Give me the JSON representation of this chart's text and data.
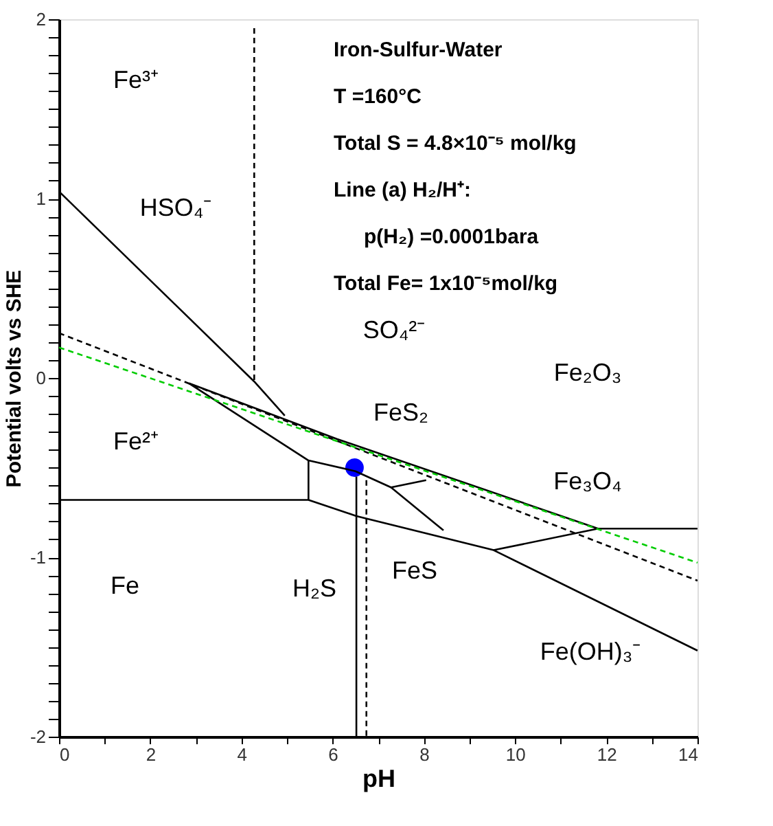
{
  "chart_data": {
    "type": "line",
    "xlabel": "pH",
    "ylabel": "Potential volts vs SHE",
    "xlim": [
      0,
      14
    ],
    "ylim": [
      -2,
      2
    ],
    "xticks": [
      0,
      {
        "value": 1,
        "label": null
      },
      2,
      {
        "value": 3,
        "label": null
      },
      4,
      {
        "value": 5,
        "label": null
      },
      6,
      {
        "value": 7,
        "label": null
      },
      8,
      {
        "value": 9,
        "label": null
      },
      10,
      {
        "value": 11,
        "label": null
      },
      12,
      {
        "value": 13,
        "label": null
      },
      14
    ],
    "yticks": [
      -2,
      {
        "value": -1.9,
        "label": null
      },
      {
        "value": -1.8,
        "label": null
      },
      {
        "value": -1.7,
        "label": null
      },
      {
        "value": -1.6,
        "label": null
      },
      {
        "value": -1.5,
        "label": null
      },
      {
        "value": -1.4,
        "label": null
      },
      {
        "value": -1.3,
        "label": null
      },
      {
        "value": -1.2,
        "label": null
      },
      {
        "value": -1.1,
        "label": null
      },
      -1,
      {
        "value": -0.9,
        "label": null
      },
      {
        "value": -0.8,
        "label": null
      },
      {
        "value": -0.7,
        "label": null
      },
      {
        "value": -0.6,
        "label": null
      },
      {
        "value": -0.5,
        "label": null
      },
      {
        "value": -0.4,
        "label": null
      },
      {
        "value": -0.3,
        "label": null
      },
      {
        "value": -0.2,
        "label": null
      },
      {
        "value": -0.1,
        "label": null
      },
      0,
      {
        "value": 0.1,
        "label": null
      },
      {
        "value": 0.2,
        "label": null
      },
      {
        "value": 0.3,
        "label": null
      },
      {
        "value": 0.4,
        "label": null
      },
      {
        "value": 0.5,
        "label": null
      },
      {
        "value": 0.6,
        "label": null
      },
      {
        "value": 0.7,
        "label": null
      },
      {
        "value": 0.8,
        "label": null
      },
      {
        "value": 0.9,
        "label": null
      },
      1,
      {
        "value": 1.1,
        "label": null
      },
      {
        "value": 1.2,
        "label": null
      },
      {
        "value": 1.3,
        "label": null
      },
      {
        "value": 1.4,
        "label": null
      },
      {
        "value": 1.5,
        "label": null
      },
      {
        "value": 1.6,
        "label": null
      },
      {
        "value": 1.7,
        "label": null
      },
      {
        "value": 1.8,
        "label": null
      },
      {
        "value": 1.9,
        "label": null
      },
      2
    ],
    "grid": false,
    "marker": "none",
    "series": [
      {
        "color": "#000000",
        "line_style": "solid",
        "x": [
          0,
          4.28,
          4.95
        ],
        "values": [
          1.04,
          -0.02,
          -0.21
        ]
      },
      {
        "color": "#000000",
        "line_style": "solid",
        "x": [
          2.85,
          6.09,
          11.82,
          14
        ],
        "values": [
          -0.03,
          -0.34,
          -0.84,
          -0.84
        ]
      },
      {
        "color": "#000000",
        "line_style": "solid",
        "x": [
          2.85,
          5.47,
          6.5,
          7.28,
          8.05
        ],
        "values": [
          -0.03,
          -0.46,
          -0.52,
          -0.61,
          -0.57
        ]
      },
      {
        "color": "#000000",
        "line_style": "solid",
        "x": [
          7.28,
          8.43
        ],
        "values": [
          -0.61,
          -0.85
        ]
      },
      {
        "color": "#000000",
        "line_style": "solid",
        "x": [
          0,
          5.47,
          5.47
        ],
        "values": [
          -0.68,
          -0.68,
          -0.46
        ]
      },
      {
        "color": "#000000",
        "line_style": "solid",
        "x": [
          5.47,
          6.52,
          9.53,
          14
        ],
        "values": [
          -0.68,
          -0.77,
          -0.96,
          -1.52
        ]
      },
      {
        "color": "#000000",
        "line_style": "solid",
        "x": [
          9.53,
          11.82
        ],
        "values": [
          -0.96,
          -0.84
        ]
      },
      {
        "color": "#000000",
        "line_style": "solid",
        "x": [
          6.52,
          6.52
        ],
        "values": [
          -0.55,
          -2
        ]
      },
      {
        "color": "#000000",
        "line_style": "dashed",
        "x": [
          6.74,
          6.74
        ],
        "values": [
          -0.57,
          -2
        ]
      },
      {
        "color": "#000000",
        "line_style": "dashed",
        "x": [
          4.28,
          4.28
        ],
        "values": [
          1.95,
          -0.02
        ]
      },
      {
        "color": "#000000",
        "line_style": "dashed",
        "x": [
          0,
          14
        ],
        "values": [
          0.25,
          -1.13
        ]
      },
      {
        "color": "#00cc00",
        "line_style": "dashed",
        "x": [
          0,
          14
        ],
        "values": [
          0.17,
          -1.03
        ]
      },
      {
        "type": "scatter",
        "color": "#0000ff",
        "marker": "circle",
        "x": [
          6.48
        ],
        "values": [
          -0.5
        ]
      }
    ],
    "annotations": [
      "Iron-Sulfur-Water",
      "T =160°C",
      "Total S = 4.8×10⁻⁵ mol/kg",
      "Line (a) H₂/H⁺:",
      "p(H₂) =0.0001bara",
      "Total Fe= 1x10⁻⁵mol/kg",
      "Fe³⁺",
      "HSO₄⁻",
      "SO₄²⁻",
      "Fe₂O₃",
      "Fe²⁺",
      "FeS₂",
      "Fe₃O₄",
      "FeS",
      "Fe(OH)₃⁻",
      "Fe",
      "H₂S"
    ]
  }
}
